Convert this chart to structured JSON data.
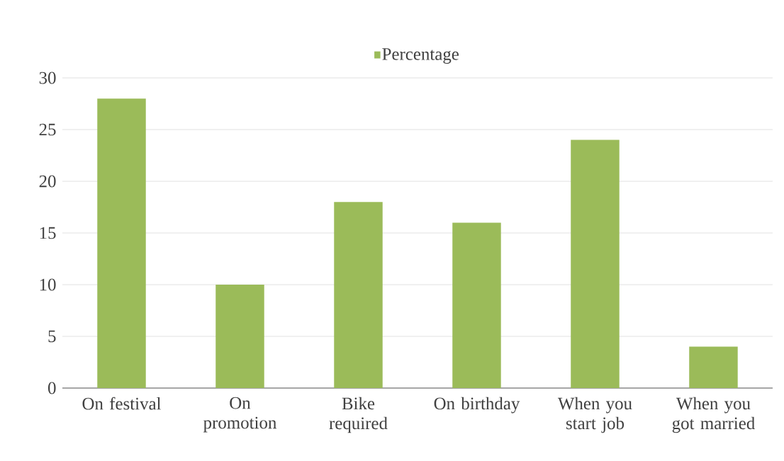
{
  "chart_data": {
    "type": "bar",
    "categories": [
      "On festival",
      "On promotion",
      "Bike required",
      "On birthday",
      "When you start job",
      "When you got married"
    ],
    "series": [
      {
        "name": "Percentage",
        "color": "#9bbb59",
        "values": [
          28,
          10,
          18,
          16,
          24,
          4
        ]
      }
    ],
    "ylim": [
      0,
      30
    ],
    "yticks": [
      0,
      5,
      10,
      15,
      20,
      25,
      30
    ],
    "grid": "y",
    "legend": "top"
  }
}
